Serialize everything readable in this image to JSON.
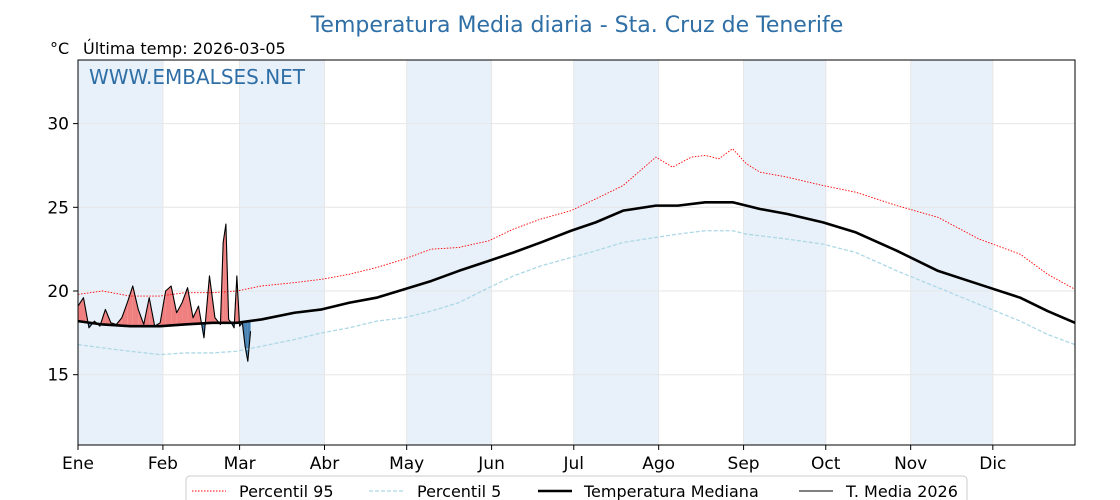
{
  "chart_data": {
    "type": "line",
    "title": "Temperatura Media diaria - Sta. Cruz de Tenerife",
    "unit": "°C",
    "last_temp_label": "Última temp: 2026-03-05",
    "watermark": "WWW.EMBALSES.NET",
    "xlabel": "",
    "ylabel": "",
    "x_range_days": [
      1,
      365
    ],
    "ylim": [
      10.8,
      33.8
    ],
    "yticks": [
      15,
      20,
      25,
      30
    ],
    "months": [
      "Ene",
      "Feb",
      "Mar",
      "Abr",
      "May",
      "Jun",
      "Jul",
      "Ago",
      "Sep",
      "Oct",
      "Nov",
      "Dic"
    ],
    "grid": true,
    "legend_position": "bottom",
    "colors": {
      "title": "#2f6fa6",
      "p95": "#ff0000",
      "p5": "#add8e6",
      "median": "#000000",
      "current": "#000000",
      "above_fill": "#f08080",
      "below_fill": "#4682b4",
      "month_band": "#e8f1fa"
    },
    "series": [
      {
        "name": "Percentil 95",
        "style": "dotted",
        "x": [
          1,
          10,
          20,
          31,
          40,
          50,
          59,
          68,
          80,
          90,
          100,
          110,
          120,
          130,
          140,
          151,
          160,
          170,
          181,
          190,
          200,
          212,
          218,
          225,
          230,
          235,
          240,
          245,
          250,
          260,
          273,
          285,
          300,
          315,
          330,
          345,
          355,
          365
        ],
        "values": [
          19.8,
          20.0,
          19.7,
          19.7,
          19.9,
          19.9,
          20.0,
          20.3,
          20.5,
          20.7,
          21.0,
          21.4,
          21.9,
          22.5,
          22.6,
          23.0,
          23.7,
          24.3,
          24.8,
          25.5,
          26.3,
          28.0,
          27.4,
          28.0,
          28.1,
          27.9,
          28.5,
          27.6,
          27.1,
          26.8,
          26.3,
          25.9,
          25.1,
          24.4,
          23.1,
          22.2,
          21.0,
          20.1
        ]
      },
      {
        "name": "Percentil 5",
        "style": "dashed",
        "x": [
          1,
          10,
          20,
          31,
          40,
          50,
          59,
          68,
          80,
          90,
          100,
          110,
          120,
          130,
          140,
          151,
          160,
          170,
          181,
          190,
          200,
          212,
          220,
          230,
          240,
          245,
          250,
          260,
          273,
          285,
          300,
          315,
          330,
          345,
          355,
          365
        ],
        "values": [
          16.8,
          16.6,
          16.4,
          16.2,
          16.3,
          16.3,
          16.4,
          16.7,
          17.1,
          17.5,
          17.8,
          18.2,
          18.4,
          18.8,
          19.3,
          20.2,
          20.9,
          21.5,
          22.0,
          22.4,
          22.9,
          23.2,
          23.4,
          23.6,
          23.6,
          23.4,
          23.3,
          23.1,
          22.8,
          22.3,
          21.2,
          20.2,
          19.2,
          18.2,
          17.4,
          16.8
        ]
      },
      {
        "name": "Temperatura Mediana",
        "style": "solid-thick",
        "x": [
          1,
          10,
          20,
          31,
          40,
          50,
          59,
          68,
          80,
          90,
          100,
          110,
          120,
          130,
          140,
          151,
          160,
          170,
          181,
          190,
          200,
          212,
          220,
          230,
          240,
          245,
          250,
          260,
          273,
          285,
          300,
          315,
          330,
          345,
          355,
          365
        ],
        "values": [
          18.2,
          18.0,
          17.9,
          17.9,
          18.0,
          18.1,
          18.1,
          18.3,
          18.7,
          18.9,
          19.3,
          19.6,
          20.1,
          20.6,
          21.2,
          21.8,
          22.3,
          22.9,
          23.6,
          24.1,
          24.8,
          25.1,
          25.1,
          25.3,
          25.3,
          25.1,
          24.9,
          24.6,
          24.1,
          23.5,
          22.4,
          21.2,
          20.4,
          19.6,
          18.8,
          18.1
        ]
      },
      {
        "name": "T. Media 2026",
        "style": "solid-thin",
        "x": [
          1,
          3,
          5,
          7,
          9,
          11,
          13,
          15,
          17,
          19,
          21,
          23,
          25,
          27,
          29,
          31,
          33,
          35,
          37,
          39,
          41,
          43,
          45,
          47,
          49,
          51,
          53,
          54,
          55,
          56,
          57,
          58,
          59,
          60,
          61,
          62,
          63,
          64
        ],
        "values": [
          19.1,
          19.6,
          17.8,
          18.2,
          17.9,
          18.9,
          18.1,
          18.0,
          18.4,
          19.3,
          20.3,
          18.9,
          18.0,
          19.6,
          17.9,
          18.1,
          20.0,
          20.3,
          18.7,
          19.3,
          20.2,
          18.4,
          19.1,
          17.2,
          20.9,
          18.4,
          18.0,
          22.9,
          24.0,
          18.3,
          18.1,
          17.8,
          20.9,
          17.9,
          18.1,
          16.7,
          15.8,
          17.6
        ]
      }
    ]
  }
}
